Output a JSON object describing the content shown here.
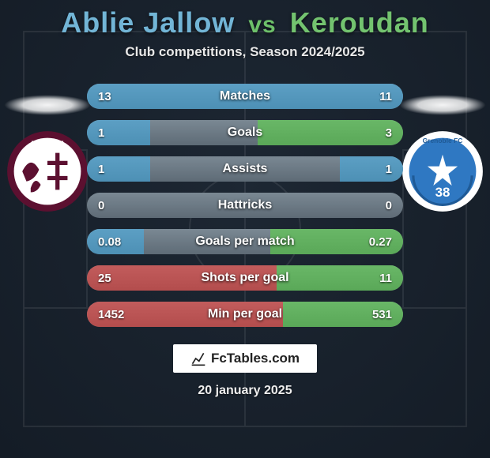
{
  "title": {
    "player1": "Ablie Jallow",
    "vs": "vs",
    "player2": "Keroudan",
    "player1_color": "#72b5d6",
    "vs_color": "#6dc06a",
    "player2_color": "#73c36f"
  },
  "subtitle": "Club competitions, Season 2024/2025",
  "background_color": "#1d2733",
  "track_color_top": "#7a8893",
  "track_color_bottom": "#5e6b76",
  "badges": {
    "left": {
      "name": "FC Metz",
      "ring_color": "#5c1030",
      "inner_color": "#ffffff",
      "accent_color": "#5c1030"
    },
    "right": {
      "name": "Grenoble Foot 38",
      "ring_color": "#ffffff",
      "inner_color": "#2f78c2",
      "accent_color": "#ffffff"
    }
  },
  "stats": [
    {
      "label": "Matches",
      "left_value": "13",
      "right_value": "11",
      "left_pct": 54,
      "right_pct": 46,
      "left_color": "#4d90b5",
      "right_color": "#4d90b5"
    },
    {
      "label": "Goals",
      "left_value": "1",
      "right_value": "3",
      "left_pct": 20,
      "right_pct": 46,
      "left_color": "#4d90b5",
      "right_color": "#5aa858"
    },
    {
      "label": "Assists",
      "left_value": "1",
      "right_value": "1",
      "left_pct": 20,
      "right_pct": 20,
      "left_color": "#4d90b5",
      "right_color": "#4d90b5"
    },
    {
      "label": "Hattricks",
      "left_value": "0",
      "right_value": "0",
      "left_pct": 0,
      "right_pct": 0,
      "left_color": "#4d90b5",
      "right_color": "#4d90b5"
    },
    {
      "label": "Goals per match",
      "left_value": "0.08",
      "right_value": "0.27",
      "left_pct": 18,
      "right_pct": 42,
      "left_color": "#4d90b5",
      "right_color": "#5aa858"
    },
    {
      "label": "Shots per goal",
      "left_value": "25",
      "right_value": "11",
      "left_pct": 60,
      "right_pct": 40,
      "left_color": "#b34d4d",
      "right_color": "#5aa858"
    },
    {
      "label": "Min per goal",
      "left_value": "1452",
      "right_value": "531",
      "left_pct": 62,
      "right_pct": 38,
      "left_color": "#b34d4d",
      "right_color": "#5aa858"
    }
  ],
  "watermark": "FcTables.com",
  "date": "20 january 2025"
}
